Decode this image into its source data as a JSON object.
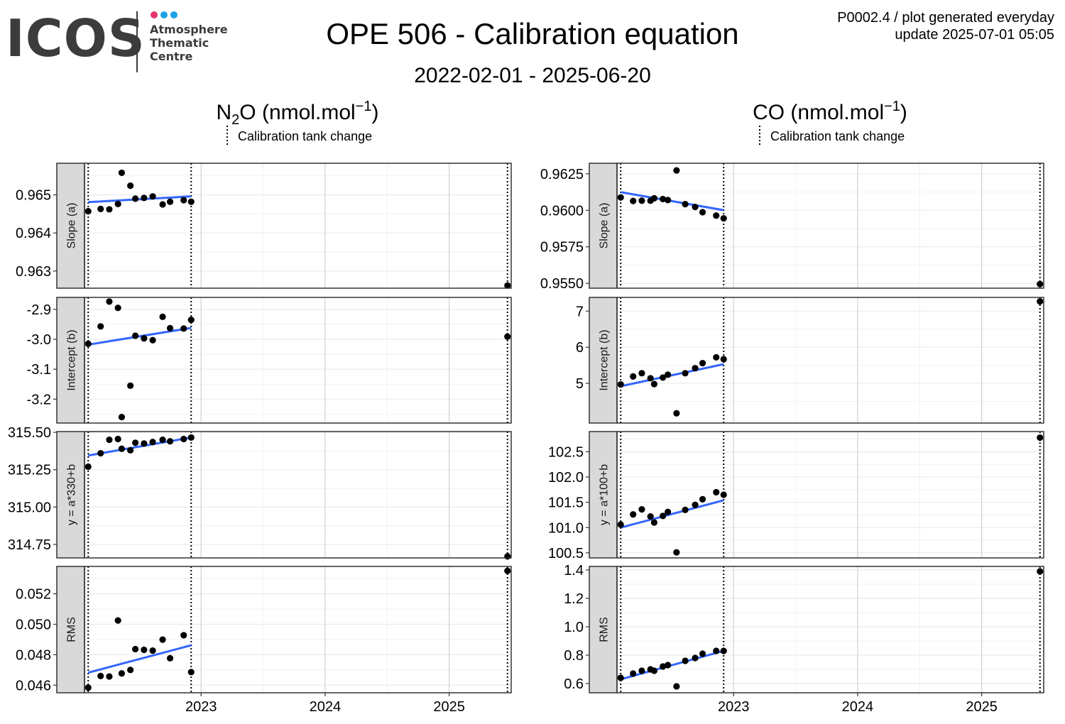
{
  "header": {
    "logo_text": "ICOS",
    "logo_subtitle": [
      "Atmosphere",
      "Thematic",
      "Centre"
    ],
    "title": "OPE 506 - Calibration equation",
    "subtitle": "2022-02-01 - 2025-06-20",
    "meta_line1": "P0002.4 / plot generated everyday",
    "meta_line2": "update  2025-07-01 05:05"
  },
  "colors": {
    "logo_dots": [
      "#e8336a",
      "#1ba1e2",
      "#1ba1e2"
    ],
    "trend_line": "#3366ff",
    "points": "#000000",
    "strip_fill": "#d9d9d9",
    "grid": "#ebebeb"
  },
  "legend_label": "Calibration tank change",
  "x_ticks": [
    "2023",
    "2024",
    "2025"
  ],
  "tank_change_lines": [
    2022.09,
    2022.92,
    2025.47
  ],
  "chart_data": [
    {
      "type": "scatter",
      "species": "N2O",
      "unit": "nmol.mol",
      "unit_exp": "−1",
      "panels": [
        {
          "strip": "Slope (a)",
          "ylim": [
            0.96255,
            0.96583
          ],
          "yticks": [
            "0.963",
            "0.964",
            "0.965"
          ],
          "x": [
            2022.09,
            2022.19,
            2022.26,
            2022.33,
            2022.36,
            2022.43,
            2022.47,
            2022.54,
            2022.61,
            2022.69,
            2022.75,
            2022.86,
            2022.92,
            2025.47
          ],
          "y": [
            0.96457,
            0.96463,
            0.96462,
            0.96476,
            0.96558,
            0.96524,
            0.9649,
            0.96492,
            0.96496,
            0.96475,
            0.96482,
            0.96486,
            0.96482,
            0.96262
          ],
          "trend": [
            [
              2022.09,
              0.96481
            ],
            [
              2022.92,
              0.96496
            ]
          ]
        },
        {
          "strip": "Intercept (b)",
          "ylim": [
            -3.28,
            -2.86
          ],
          "yticks": [
            "-3.2",
            "-3.1",
            "-3.0",
            "-2.9"
          ],
          "x": [
            2022.09,
            2022.19,
            2022.26,
            2022.33,
            2022.36,
            2022.43,
            2022.47,
            2022.54,
            2022.61,
            2022.69,
            2022.75,
            2022.86,
            2022.92,
            2025.47
          ],
          "y": [
            -3.015,
            -2.957,
            -2.874,
            -2.895,
            -3.26,
            -3.155,
            -2.988,
            -2.997,
            -3.003,
            -2.925,
            -2.963,
            -2.964,
            -2.935,
            -2.991
          ],
          "trend": [
            [
              2022.09,
              -3.018
            ],
            [
              2022.92,
              -2.962
            ]
          ]
        },
        {
          "strip": "y = a*330+b",
          "ylim": [
            314.66,
            315.505
          ],
          "yticks": [
            "314.75",
            "315.00",
            "315.25",
            "315.50"
          ],
          "x": [
            2022.09,
            2022.19,
            2022.26,
            2022.33,
            2022.36,
            2022.43,
            2022.47,
            2022.54,
            2022.61,
            2022.69,
            2022.75,
            2022.86,
            2022.92,
            2025.47
          ],
          "y": [
            315.27,
            315.36,
            315.45,
            315.455,
            315.39,
            315.38,
            315.43,
            315.425,
            315.435,
            315.45,
            315.44,
            315.455,
            315.465,
            314.67
          ],
          "trend": [
            [
              2022.09,
              315.345
            ],
            [
              2022.92,
              315.465
            ]
          ]
        },
        {
          "strip": "RMS",
          "ylim": [
            0.0455,
            0.0538
          ],
          "yticks": [
            "0.046",
            "0.048",
            "0.050",
            "0.052"
          ],
          "x": [
            2022.09,
            2022.19,
            2022.26,
            2022.33,
            2022.36,
            2022.43,
            2022.47,
            2022.54,
            2022.61,
            2022.69,
            2022.75,
            2022.86,
            2022.92,
            2025.47
          ],
          "y": [
            0.04584,
            0.0466,
            0.04657,
            0.05025,
            0.04677,
            0.047,
            0.04837,
            0.04832,
            0.04827,
            0.04899,
            0.04777,
            0.04928,
            0.04686,
            0.05351
          ],
          "trend": [
            [
              2022.09,
              0.04682
            ],
            [
              2022.92,
              0.04862
            ]
          ]
        }
      ]
    },
    {
      "type": "scatter",
      "species": "CO",
      "unit": "nmol.mol",
      "unit_exp": "−1",
      "panels": [
        {
          "strip": "Slope (a)",
          "ylim": [
            0.95467,
            0.96322
          ],
          "yticks": [
            "0.9550",
            "0.9575",
            "0.9600",
            "0.9625"
          ],
          "x": [
            2022.09,
            2022.19,
            2022.26,
            2022.33,
            2022.36,
            2022.43,
            2022.47,
            2022.54,
            2022.61,
            2022.69,
            2022.75,
            2022.86,
            2022.92,
            2025.47
          ],
          "y": [
            0.96088,
            0.96064,
            0.96066,
            0.96066,
            0.96082,
            0.96077,
            0.9607,
            0.96273,
            0.96042,
            0.96023,
            0.95987,
            0.95964,
            0.95945,
            0.95495
          ],
          "trend": [
            [
              2022.09,
              0.96124
            ],
            [
              2022.92,
              0.96001
            ]
          ]
        },
        {
          "strip": "Intercept (b)",
          "ylim": [
            3.9,
            7.38
          ],
          "yticks": [
            "5",
            "6",
            "7"
          ],
          "x": [
            2022.09,
            2022.19,
            2022.26,
            2022.33,
            2022.36,
            2022.43,
            2022.47,
            2022.54,
            2022.61,
            2022.69,
            2022.75,
            2022.86,
            2022.92,
            2025.47
          ],
          "y": [
            4.97,
            5.19,
            5.28,
            5.14,
            4.98,
            5.16,
            5.24,
            4.17,
            5.28,
            5.42,
            5.56,
            5.72,
            5.67,
            7.27
          ],
          "trend": [
            [
              2022.09,
              4.92
            ],
            [
              2022.92,
              5.53
            ]
          ]
        },
        {
          "strip": "y = a*100+b",
          "ylim": [
            100.4,
            102.9
          ],
          "yticks": [
            "100.5",
            "101.0",
            "101.5",
            "102.0",
            "102.5"
          ],
          "x": [
            2022.09,
            2022.19,
            2022.26,
            2022.33,
            2022.36,
            2022.43,
            2022.47,
            2022.54,
            2022.61,
            2022.69,
            2022.75,
            2022.86,
            2022.92,
            2025.47
          ],
          "y": [
            101.06,
            101.26,
            101.36,
            101.22,
            101.1,
            101.23,
            101.31,
            100.51,
            101.35,
            101.45,
            101.56,
            101.7,
            101.65,
            102.78
          ],
          "trend": [
            [
              2022.09,
              101.0
            ],
            [
              2022.92,
              101.54
            ]
          ]
        },
        {
          "strip": "RMS",
          "ylim": [
            0.535,
            1.425
          ],
          "yticks": [
            "0.6",
            "0.8",
            "1.0",
            "1.2",
            "1.4"
          ],
          "x": [
            2022.09,
            2022.19,
            2022.26,
            2022.33,
            2022.36,
            2022.43,
            2022.47,
            2022.54,
            2022.61,
            2022.69,
            2022.75,
            2022.86,
            2022.92,
            2025.47
          ],
          "y": [
            0.64,
            0.67,
            0.69,
            0.7,
            0.69,
            0.72,
            0.73,
            0.58,
            0.76,
            0.78,
            0.81,
            0.83,
            0.83,
            1.39
          ],
          "trend": [
            [
              2022.09,
              0.63
            ],
            [
              2022.92,
              0.83
            ]
          ]
        }
      ]
    }
  ]
}
